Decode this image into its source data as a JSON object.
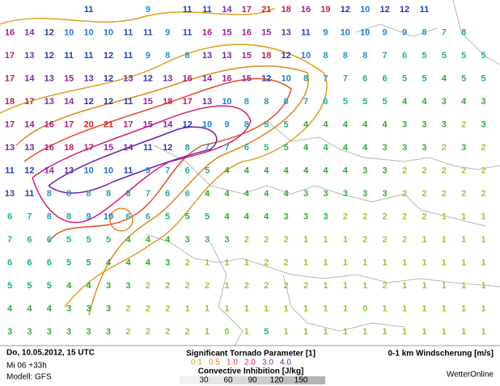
{
  "map": {
    "value_colors": [
      "#80cc20",
      "#8ccc1e",
      "#9ec832",
      "#2ab52a",
      "#1fae2a",
      "#22b07a",
      "#22ae9a",
      "#28a8b8",
      "#2298b8",
      "#1e8cd8",
      "#1e78e0",
      "#2040c0",
      "#2a34b8",
      "#6a2cb0",
      "#8424a8",
      "#9a22a0",
      "#aa1c8a",
      "#b81e74",
      "#c41e58",
      "#d41e3e",
      "#e01c22",
      "#e01c22"
    ],
    "rows": [
      [
        null,
        null,
        null,
        null,
        11,
        null,
        null,
        9,
        null,
        11,
        11,
        14,
        17,
        21,
        18,
        16,
        19,
        12,
        10,
        12,
        12,
        11,
        null,
        null,
        null
      ],
      [
        16,
        14,
        12,
        10,
        10,
        10,
        11,
        11,
        9,
        11,
        16,
        15,
        16,
        15,
        13,
        11,
        9,
        10,
        10,
        9,
        9,
        8,
        7,
        8,
        null
      ],
      [
        17,
        13,
        12,
        11,
        11,
        12,
        11,
        9,
        8,
        8,
        13,
        13,
        15,
        18,
        12,
        10,
        8,
        8,
        8,
        7,
        6,
        5,
        5,
        5,
        5
      ],
      [
        17,
        14,
        13,
        15,
        13,
        12,
        13,
        12,
        13,
        16,
        14,
        16,
        15,
        12,
        10,
        8,
        7,
        7,
        6,
        6,
        5,
        5,
        4,
        5,
        5
      ],
      [
        18,
        17,
        13,
        14,
        12,
        12,
        11,
        15,
        18,
        17,
        13,
        10,
        8,
        8,
        8,
        7,
        6,
        5,
        5,
        5,
        4,
        4,
        3,
        4,
        3
      ],
      [
        17,
        14,
        16,
        17,
        20,
        21,
        17,
        15,
        14,
        12,
        10,
        9,
        8,
        5,
        5,
        4,
        4,
        4,
        4,
        4,
        3,
        3,
        3,
        2,
        3
      ],
      [
        13,
        13,
        16,
        18,
        17,
        15,
        14,
        11,
        12,
        8,
        7,
        7,
        6,
        5,
        5,
        4,
        4,
        4,
        4,
        3,
        3,
        3,
        2,
        3,
        2
      ],
      [
        11,
        12,
        14,
        13,
        10,
        10,
        11,
        9,
        7,
        6,
        5,
        4,
        4,
        4,
        4,
        4,
        4,
        4,
        3,
        3,
        2,
        2,
        2,
        2,
        2
      ],
      [
        13,
        11,
        8,
        8,
        8,
        8,
        8,
        7,
        6,
        6,
        4,
        4,
        4,
        4,
        4,
        3,
        3,
        3,
        3,
        3,
        2,
        2,
        2,
        2,
        2
      ],
      [
        6,
        7,
        8,
        8,
        9,
        10,
        6,
        6,
        5,
        5,
        5,
        4,
        4,
        4,
        3,
        3,
        3,
        2,
        2,
        2,
        2,
        2,
        1,
        1,
        1
      ],
      [
        7,
        6,
        6,
        5,
        5,
        5,
        4,
        4,
        4,
        3,
        3,
        3,
        2,
        2,
        2,
        1,
        1,
        1,
        2,
        2,
        2,
        1,
        1,
        1,
        1
      ],
      [
        6,
        6,
        6,
        5,
        5,
        4,
        4,
        4,
        3,
        2,
        1,
        1,
        1,
        2,
        2,
        1,
        1,
        1,
        1,
        1,
        1,
        1,
        1,
        1,
        1
      ],
      [
        5,
        5,
        5,
        4,
        4,
        3,
        3,
        2,
        2,
        2,
        2,
        1,
        2,
        2,
        2,
        2,
        1,
        1,
        1,
        2,
        1,
        1,
        1,
        1,
        1
      ],
      [
        4,
        4,
        4,
        3,
        3,
        3,
        2,
        2,
        2,
        1,
        1,
        1,
        1,
        1,
        1,
        1,
        1,
        1,
        0,
        1,
        1,
        1,
        1,
        1,
        1
      ],
      [
        3,
        3,
        3,
        3,
        3,
        3,
        2,
        2,
        2,
        2,
        1,
        0,
        1,
        5,
        1,
        1,
        1,
        1,
        1,
        1,
        1,
        1,
        1,
        1,
        1
      ]
    ]
  },
  "footer": {
    "date": "Do, 10.05.2012, 15 UTC",
    "run": "Mi 06 +33h",
    "model": "Modell: GFS",
    "stp_title": "Significant Tornado Parameter [1]",
    "stp_levels": [
      {
        "label": "0.1",
        "color": "#e0a020"
      },
      {
        "label": "0.5",
        "color": "#e08a20"
      },
      {
        "label": "1.0",
        "color": "#e0502a"
      },
      {
        "label": "2.0",
        "color": "#d82070"
      },
      {
        "label": "3.0",
        "color": "#b020a0"
      },
      {
        "label": "4.0",
        "color": "#7020b0"
      }
    ],
    "cin_title": "Convective Inhibition [J/kg]",
    "cin_levels": [
      "30",
      "60",
      "90",
      "120",
      "150"
    ],
    "shear_title": "0-1 km Windscherung [m/s]",
    "brand": "WetterOnline"
  }
}
